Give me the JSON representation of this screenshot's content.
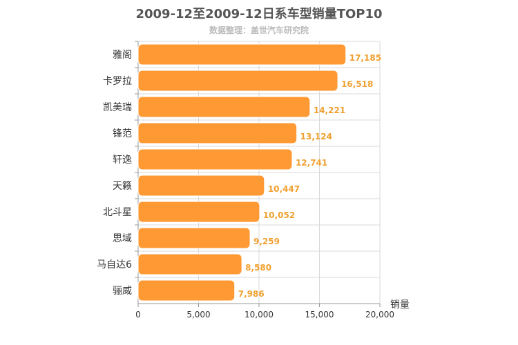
{
  "header": {
    "title": "2009-12至2009-12日系车型销量TOP10",
    "subtitle": "数据整理：盖世汽车研究院"
  },
  "colors": {
    "bar": "#ff9933",
    "bar_stroke": "#ffffff",
    "value_label": "#f0a030",
    "grid": "#d8d8d8",
    "axis": "#999999"
  },
  "chart_data": {
    "type": "bar",
    "orientation": "horizontal",
    "title": "2009-12至2009-12日系车型销量TOP10",
    "subtitle": "数据整理：盖世汽车研究院",
    "categories": [
      "雅阁",
      "卡罗拉",
      "凯美瑞",
      "锋范",
      "轩逸",
      "天籁",
      "北斗星",
      "思域",
      "马自达6",
      "骊威"
    ],
    "values": [
      17185,
      16518,
      14221,
      13124,
      12741,
      10447,
      10052,
      9259,
      8580,
      7986
    ],
    "value_labels": [
      "17,185",
      "16,518",
      "14,221",
      "13,124",
      "12,741",
      "10,447",
      "10,052",
      "9,259",
      "8,580",
      "7,986"
    ],
    "xlabel": "销量",
    "ylabel": "",
    "xlim": [
      0,
      20000
    ],
    "ticks": [
      0,
      5000,
      10000,
      15000,
      20000
    ],
    "tick_labels": [
      "0",
      "5,000",
      "10,000",
      "15,000",
      "20,000"
    ],
    "grid": true,
    "legend": "none"
  }
}
